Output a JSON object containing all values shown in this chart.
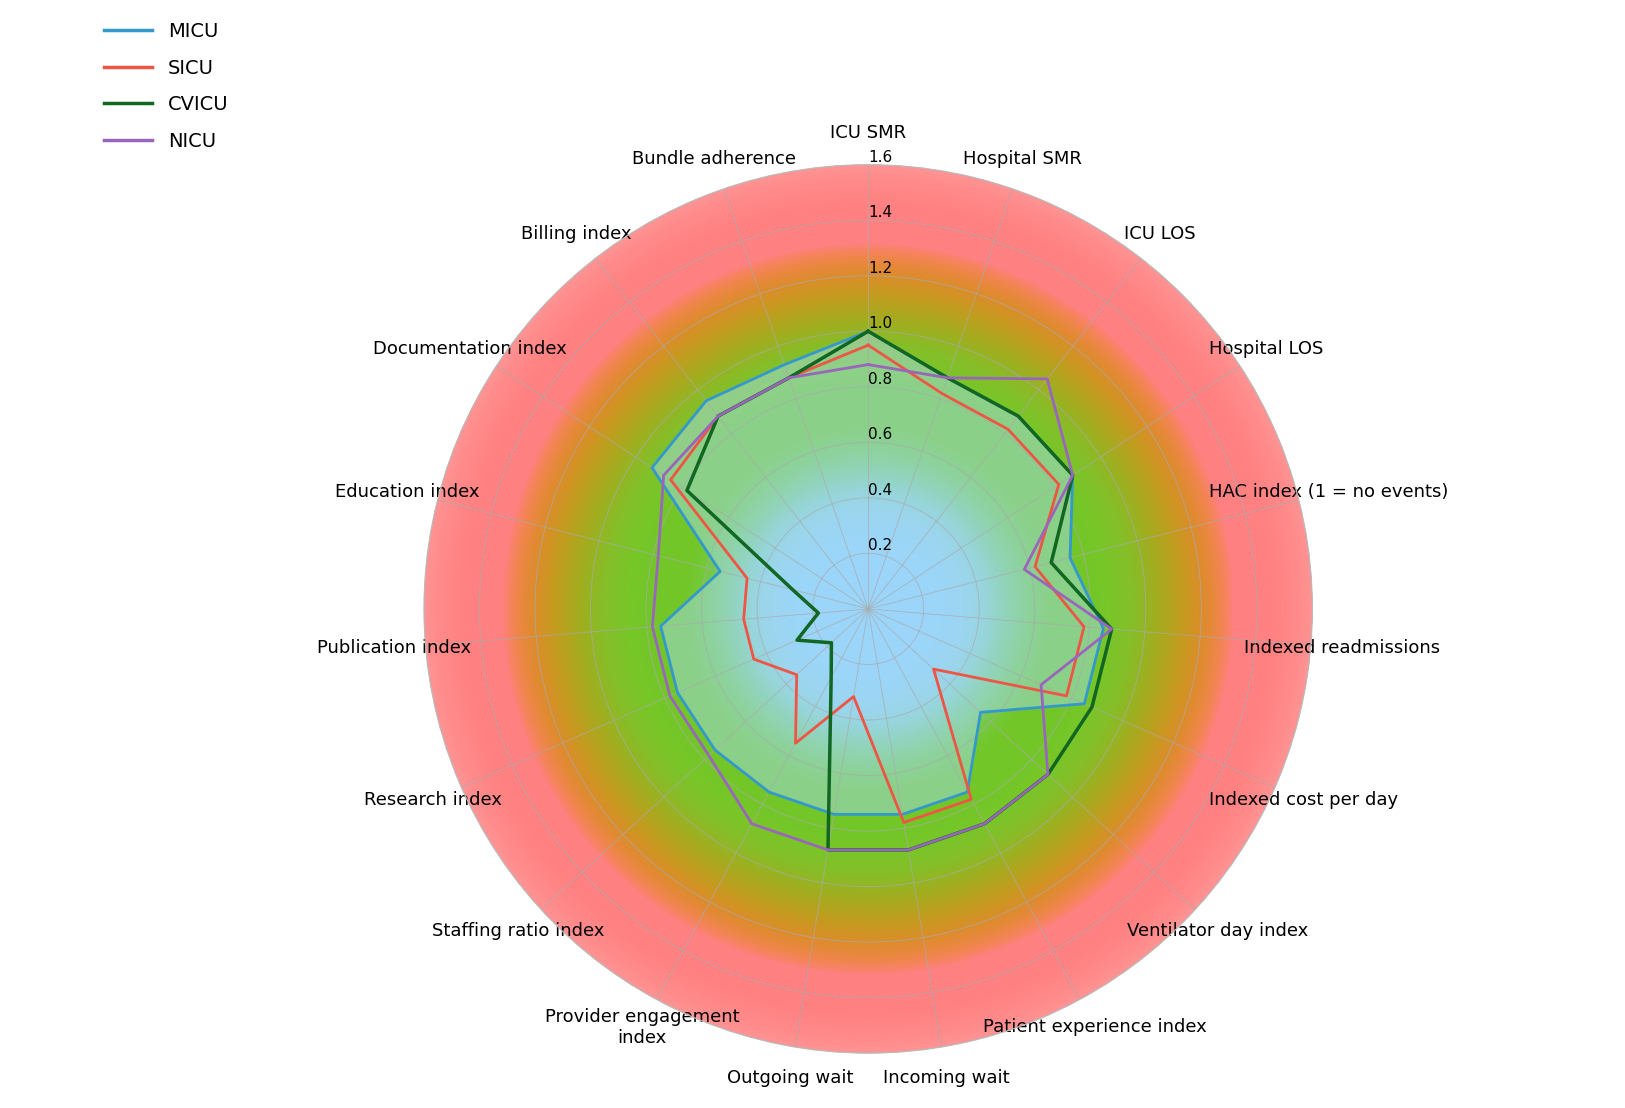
{
  "categories": [
    "ICU SMR",
    "Hospital SMR",
    "ICU LOS",
    "Hospital LOS",
    "HAC index (1 = no events)",
    "Indexed readmissions",
    "Indexed cost per day",
    "Ventilator day index",
    "Patient experience index",
    "Incoming wait",
    "Outgoing wait",
    "Provider engagement\nindex",
    "Staffing ratio index",
    "Research index",
    "Publication index",
    "Education index",
    "Documentation index",
    "Billing index",
    "Bundle adherence"
  ],
  "series": {
    "MICU": [
      1.0,
      0.88,
      0.88,
      0.88,
      0.75,
      0.85,
      0.85,
      0.55,
      0.75,
      0.75,
      0.75,
      0.75,
      0.75,
      0.75,
      0.75,
      0.55,
      0.93,
      0.95,
      0.93
    ],
    "SICU": [
      0.95,
      0.82,
      0.82,
      0.82,
      0.62,
      0.78,
      0.78,
      0.32,
      0.78,
      0.78,
      0.32,
      0.55,
      0.35,
      0.45,
      0.45,
      0.45,
      0.85,
      0.88,
      0.88
    ],
    "CVICU": [
      1.0,
      0.88,
      0.88,
      0.88,
      0.68,
      0.88,
      0.88,
      0.88,
      0.88,
      0.88,
      0.88,
      0.28,
      0.18,
      0.28,
      0.18,
      0.28,
      0.78,
      0.88,
      0.88
    ],
    "NICU": [
      0.88,
      0.88,
      1.05,
      0.88,
      0.58,
      0.88,
      0.68,
      0.88,
      0.88,
      0.88,
      0.88,
      0.88,
      0.78,
      0.78,
      0.78,
      0.78,
      0.88,
      0.88,
      0.88
    ]
  },
  "colors": {
    "MICU": "#3399CC",
    "SICU": "#EE5544",
    "CVICU": "#116622",
    "NICU": "#9966BB"
  },
  "linewidths": {
    "MICU": 2.0,
    "SICU": 2.0,
    "CVICU": 2.5,
    "NICU": 2.0
  },
  "r_max": 1.6,
  "r_ticks": [
    0.2,
    0.4,
    0.6,
    0.8,
    1.0,
    1.2,
    1.4,
    1.6
  ],
  "figsize": [
    16.25,
    11.08
  ],
  "dpi": 100,
  "label_fontsize": 13,
  "tick_fontsize": 11,
  "legend_fontsize": 14
}
